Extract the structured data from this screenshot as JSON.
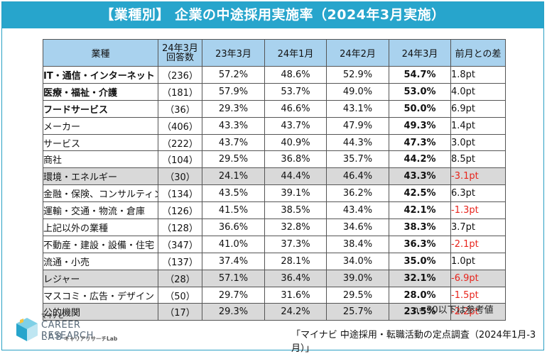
{
  "title": "【業種別】 企業の中途採用実施率（2024年3月実施）",
  "chart_data": {
    "type": "table",
    "headers": {
      "industry": "業種",
      "count": [
        "24年3月",
        "回答数"
      ],
      "periods": [
        "23年3月",
        "24年1月",
        "24年2月",
        "24年3月"
      ],
      "diff": "前月との差"
    },
    "rows": [
      {
        "industry": "IT・通信・インターネット",
        "bold": true,
        "gray": false,
        "count": "（236）",
        "v2303": "57.2%",
        "v2401": "48.6%",
        "v2402": "52.9%",
        "v2403": "54.7%",
        "diff": "1.8pt",
        "neg": false
      },
      {
        "industry": "医療・福祉・介護",
        "bold": true,
        "gray": false,
        "count": "（181）",
        "v2303": "57.9%",
        "v2401": "53.7%",
        "v2402": "49.0%",
        "v2403": "53.0%",
        "diff": "4.0pt",
        "neg": false
      },
      {
        "industry": "フードサービス",
        "bold": true,
        "gray": false,
        "count": "（36）",
        "v2303": "29.3%",
        "v2401": "46.6%",
        "v2402": "43.1%",
        "v2403": "50.0%",
        "diff": "6.9pt",
        "neg": false
      },
      {
        "industry": "メーカー",
        "bold": false,
        "gray": false,
        "count": "（406）",
        "v2303": "43.3%",
        "v2401": "43.7%",
        "v2402": "47.9%",
        "v2403": "49.3%",
        "diff": "1.4pt",
        "neg": false
      },
      {
        "industry": "サービス",
        "bold": false,
        "gray": false,
        "count": "（222）",
        "v2303": "43.7%",
        "v2401": "40.9%",
        "v2402": "44.3%",
        "v2403": "47.3%",
        "diff": "3.0pt",
        "neg": false
      },
      {
        "industry": "商社",
        "bold": false,
        "gray": false,
        "count": "（104）",
        "v2303": "29.5%",
        "v2401": "36.8%",
        "v2402": "35.7%",
        "v2403": "44.2%",
        "diff": "8.5pt",
        "neg": false
      },
      {
        "industry": "環境・エネルギー",
        "bold": false,
        "gray": true,
        "count": "（30）",
        "v2303": "24.1%",
        "v2401": "44.4%",
        "v2402": "46.4%",
        "v2403": "43.3%",
        "diff": "-3.1pt",
        "neg": true
      },
      {
        "industry": "金融・保険、コンサルティング",
        "bold": false,
        "gray": false,
        "count": "（134）",
        "v2303": "43.5%",
        "v2401": "39.1%",
        "v2402": "36.2%",
        "v2403": "42.5%",
        "diff": "6.3pt",
        "neg": false
      },
      {
        "industry": "運輸・交通・物流・倉庫",
        "bold": false,
        "gray": false,
        "count": "（126）",
        "v2303": "41.5%",
        "v2401": "38.5%",
        "v2402": "43.4%",
        "v2403": "42.1%",
        "diff": "-1.3pt",
        "neg": true
      },
      {
        "industry": "上記以外の業種",
        "bold": false,
        "gray": false,
        "count": "（128）",
        "v2303": "36.6%",
        "v2401": "32.8%",
        "v2402": "34.6%",
        "v2403": "38.3%",
        "diff": "3.7pt",
        "neg": false
      },
      {
        "industry": "不動産・建設・設備・住宅",
        "bold": false,
        "gray": false,
        "count": "（347）",
        "v2303": "41.0%",
        "v2401": "37.3%",
        "v2402": "38.4%",
        "v2403": "36.3%",
        "diff": "-2.1pt",
        "neg": true
      },
      {
        "industry": "流通・小売",
        "bold": false,
        "gray": false,
        "count": "（137）",
        "v2303": "37.4%",
        "v2401": "28.1%",
        "v2402": "34.0%",
        "v2403": "35.0%",
        "diff": "1.0pt",
        "neg": false
      },
      {
        "industry": "レジャー",
        "bold": false,
        "gray": true,
        "count": "（28）",
        "v2303": "57.1%",
        "v2401": "36.4%",
        "v2402": "39.0%",
        "v2403": "32.1%",
        "diff": "-6.9pt",
        "neg": true
      },
      {
        "industry": "マスコミ・広告・デザイン",
        "bold": false,
        "gray": false,
        "count": "（50）",
        "v2303": "29.7%",
        "v2401": "31.6%",
        "v2402": "29.5%",
        "v2403": "28.0%",
        "diff": "-1.5pt",
        "neg": true
      },
      {
        "industry": "公的機関",
        "bold": false,
        "gray": true,
        "count": "（17）",
        "v2303": "29.3%",
        "v2401": "24.2%",
        "v2402": "25.7%",
        "v2403": "23.5%",
        "diff": "-2.2pt",
        "neg": true
      }
    ]
  },
  "note": "n=30以下は参考値",
  "source": "「マイナビ 中途採用・転職活動の定点調査（2024年1月-3月）」",
  "logo": {
    "mynavi": "マイナビ",
    "career": "CAREER RESEARCH",
    "lab": "LAB",
    "kana": "キャリアリサーチLab"
  },
  "colors": {
    "banner": "#27a5cc",
    "header": "#a9d2ee",
    "gray_row": "#d9d9d9",
    "negative": "#e8241c"
  }
}
